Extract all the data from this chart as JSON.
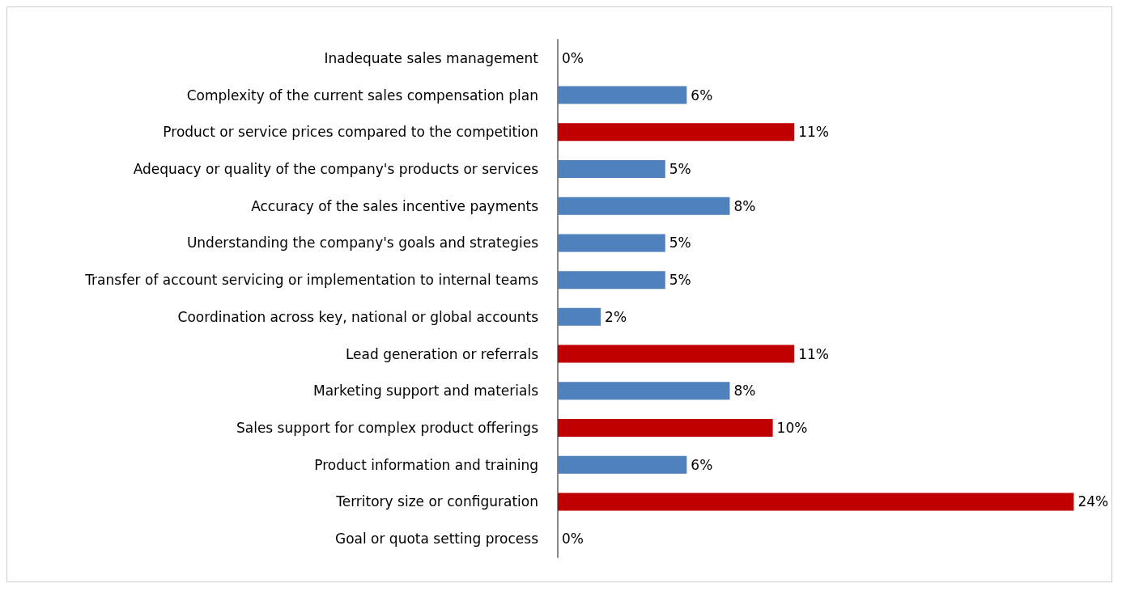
{
  "chart_data": {
    "type": "bar",
    "orientation": "horizontal",
    "categories": [
      "Inadequate sales management",
      "Complexity of the current sales compensation plan",
      "Product or service prices compared to the competition",
      "Adequacy or quality of the company's products or services",
      "Accuracy of the sales incentive payments",
      "Understanding the company's goals and strategies",
      "Transfer of account servicing or implementation to internal teams",
      "Coordination across key, national or global accounts",
      "Lead generation or referrals",
      "Marketing support and materials",
      "Sales support for complex product offerings",
      "Product information and training",
      "Territory size or configuration",
      "Goal or quota setting process"
    ],
    "values": [
      0,
      6,
      11,
      5,
      8,
      5,
      5,
      2,
      11,
      8,
      10,
      6,
      24,
      0
    ],
    "colors": [
      "#4f81bd",
      "#4f81bd",
      "#c00000",
      "#4f81bd",
      "#4f81bd",
      "#4f81bd",
      "#4f81bd",
      "#4f81bd",
      "#c00000",
      "#4f81bd",
      "#c00000",
      "#4f81bd",
      "#c00000",
      "#4f81bd"
    ],
    "value_labels": [
      "0%",
      "6%",
      "11%",
      "5%",
      "8%",
      "5%",
      "5%",
      "2%",
      "11%",
      "8%",
      "10%",
      "6%",
      "24%",
      "0%"
    ]
  }
}
